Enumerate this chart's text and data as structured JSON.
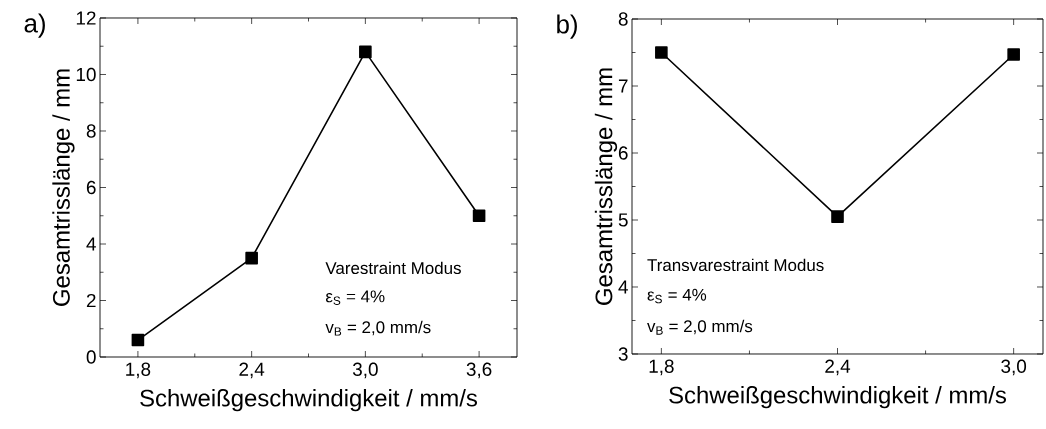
{
  "chart_data": [
    {
      "type": "line",
      "title": "a)",
      "xlabel": "Schweißgeschwindigkeit / mm/s",
      "ylabel": "Gesamtrisslänge / mm",
      "x": [
        1.8,
        2.4,
        3.0,
        3.6
      ],
      "values": [
        0.6,
        3.5,
        10.8,
        5.0
      ],
      "color": "#000000",
      "marker": "square",
      "line_style": "solid",
      "xlim": [
        1.6,
        3.8
      ],
      "xticks": [
        {
          "value": 1.8,
          "label": "1,8"
        },
        {
          "value": 2.4,
          "label": "2,4"
        },
        {
          "value": 3.0,
          "label": "3,0"
        },
        {
          "value": 3.6,
          "label": "3,6"
        }
      ],
      "ylim": [
        0,
        12
      ],
      "yticks": [
        0,
        2,
        4,
        6,
        8,
        10,
        12
      ],
      "annotations": [
        "Varestraint Modus",
        "ε$_{S}$ = 4%",
        "v$_{B}$ = 2,0 mm/s"
      ]
    },
    {
      "type": "line",
      "title": "b)",
      "xlabel": "Schweißgeschwindigkeit / mm/s",
      "ylabel": "Gesamtrisslänge / mm",
      "x": [
        1.8,
        2.4,
        3.0
      ],
      "values": [
        7.5,
        5.05,
        7.47
      ],
      "color": "#000000",
      "marker": "square",
      "line_style": "solid",
      "xlim": [
        1.7,
        3.1
      ],
      "xticks": [
        {
          "value": 1.8,
          "label": "1,8"
        },
        {
          "value": 2.4,
          "label": "2,4"
        },
        {
          "value": 3.0,
          "label": "3,0"
        }
      ],
      "ylim": [
        3,
        8
      ],
      "yticks": [
        3,
        4,
        5,
        6,
        7,
        8
      ],
      "annotations": [
        "Transvarestraint Modus",
        "ε$_{S}$ = 4%",
        "v$_{B}$ = 2,0 mm/s"
      ]
    }
  ]
}
